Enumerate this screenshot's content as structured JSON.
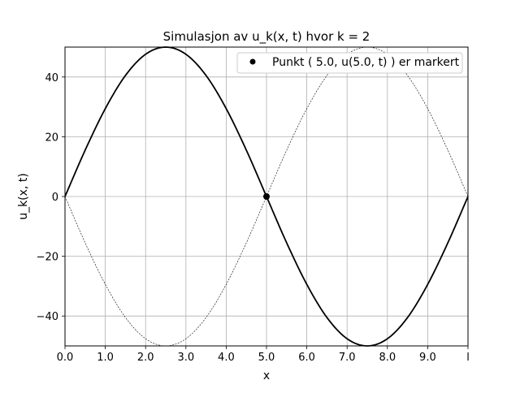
{
  "chart_data": {
    "type": "line",
    "title": "Simulasjon av u_k(x, t) hvor k = 2",
    "xlabel": "x",
    "ylabel": "u_k(x, t)",
    "xlim": [
      0,
      10
    ],
    "ylim": [
      -50,
      50
    ],
    "grid": true,
    "x_ticks": [
      {
        "value": 0,
        "label": "0.0"
      },
      {
        "value": 1,
        "label": "1.0"
      },
      {
        "value": 2,
        "label": "2.0"
      },
      {
        "value": 3,
        "label": "3.0"
      },
      {
        "value": 4,
        "label": "4.0"
      },
      {
        "value": 5,
        "label": "5.0"
      },
      {
        "value": 6,
        "label": "6.0"
      },
      {
        "value": 7,
        "label": "7.0"
      },
      {
        "value": 8,
        "label": "8.0"
      },
      {
        "value": 9,
        "label": "9.0"
      },
      {
        "value": 10,
        "label": "l"
      }
    ],
    "y_ticks": [
      {
        "value": 40,
        "label": "40"
      },
      {
        "value": 20,
        "label": "20"
      },
      {
        "value": 0,
        "label": "0"
      },
      {
        "value": -20,
        "label": "−20"
      },
      {
        "value": -40,
        "label": "−40"
      }
    ],
    "series": [
      {
        "style": "solid",
        "color": "#000000",
        "x": [
          0,
          0.5,
          1,
          1.5,
          2,
          2.5,
          3,
          3.5,
          4,
          4.5,
          5,
          5.5,
          6,
          6.5,
          7,
          7.5,
          8,
          8.5,
          9,
          9.5,
          10
        ],
        "y": [
          0,
          15.5,
          29.4,
          40.5,
          47.6,
          50,
          47.6,
          40.5,
          29.4,
          15.5,
          0,
          -15.5,
          -29.4,
          -40.5,
          -47.6,
          -50,
          -47.6,
          -40.5,
          -29.4,
          -15.5,
          0
        ]
      },
      {
        "style": "dashed",
        "color": "#000000",
        "x": [
          0,
          0.5,
          1,
          1.5,
          2,
          2.5,
          3,
          3.5,
          4,
          4.5,
          5,
          5.5,
          6,
          6.5,
          7,
          7.5,
          8,
          8.5,
          9,
          9.5,
          10
        ],
        "y": [
          0,
          -15.5,
          -29.4,
          -40.5,
          -47.6,
          -50,
          -47.6,
          -40.5,
          -29.4,
          -15.5,
          0,
          15.5,
          29.4,
          40.5,
          47.6,
          50,
          47.6,
          40.5,
          29.4,
          15.5,
          0
        ]
      }
    ],
    "marker": {
      "x": 5.0,
      "y": 0,
      "color": "#000000"
    },
    "legend": {
      "placement": "top-right",
      "entries": [
        {
          "label": "Punkt ( 5.0, u(5.0, t) ) er markert",
          "marker": "dot"
        }
      ]
    }
  }
}
